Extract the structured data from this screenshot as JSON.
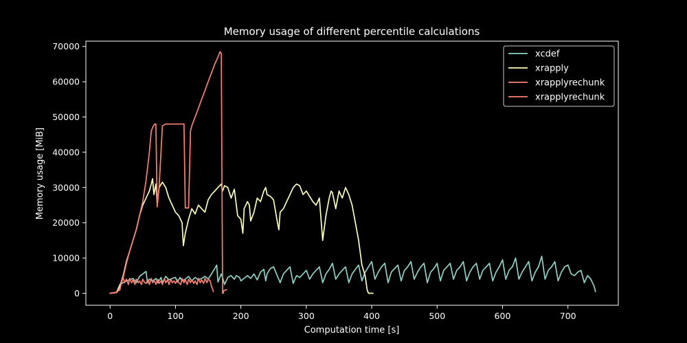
{
  "chart_data": {
    "type": "line",
    "title": "Memory usage of different percentile calculations",
    "xlabel": "Computation time [s]",
    "ylabel": "Memory usage [MiB]",
    "xlim": [
      -37,
      777
    ],
    "ylim": [
      -3400,
      71500
    ],
    "xticks": [
      0,
      100,
      200,
      300,
      400,
      500,
      600,
      700
    ],
    "yticks": [
      0,
      10000,
      20000,
      30000,
      40000,
      50000,
      60000,
      70000
    ],
    "legend_position": "top-right",
    "grid": false,
    "series": [
      {
        "name": "xcdef",
        "color": "#8dd3c7",
        "x": [
          0,
          10,
          15,
          25,
          35,
          40,
          45,
          50,
          55,
          57,
          60,
          65,
          70,
          73,
          78,
          80,
          85,
          90,
          95,
          100,
          103,
          107,
          110,
          115,
          120,
          125,
          130,
          135,
          140,
          145,
          150,
          155,
          160,
          163,
          165,
          170,
          172,
          175,
          180,
          185,
          190,
          193,
          198,
          200,
          210,
          215,
          220,
          225,
          230,
          235,
          238,
          240,
          245,
          250,
          260,
          265,
          270,
          275,
          280,
          285,
          290,
          295,
          300,
          305,
          310,
          315,
          320,
          325,
          330,
          335,
          340,
          345,
          350,
          355,
          360,
          365,
          370,
          375,
          380,
          385,
          390,
          395,
          400,
          405,
          410,
          415,
          420,
          425,
          430,
          435,
          440,
          445,
          450,
          455,
          460,
          465,
          470,
          475,
          480,
          485,
          490,
          495,
          500,
          505,
          510,
          515,
          520,
          525,
          530,
          535,
          540,
          545,
          550,
          555,
          560,
          565,
          570,
          575,
          580,
          585,
          590,
          595,
          600,
          605,
          610,
          615,
          620,
          625,
          630,
          635,
          640,
          645,
          650,
          655,
          660,
          665,
          670,
          675,
          680,
          685,
          690,
          695,
          700,
          705,
          710,
          715,
          720,
          725,
          730,
          735,
          740,
          742
        ],
        "y": [
          0,
          300,
          2500,
          3500,
          4200,
          3000,
          4800,
          5500,
          6200,
          3000,
          4000,
          3500,
          4200,
          3000,
          4500,
          3000,
          4800,
          3800,
          4200,
          4500,
          3200,
          4500,
          3500,
          4000,
          4800,
          3500,
          4500,
          3800,
          4200,
          4800,
          4000,
          5500,
          7000,
          8000,
          3200,
          5500,
          4500,
          2500,
          4500,
          5000,
          4000,
          5000,
          4500,
          3500,
          5000,
          4200,
          5500,
          3800,
          6000,
          6800,
          3500,
          5500,
          7000,
          7500,
          3000,
          5500,
          6500,
          7500,
          2800,
          5000,
          4500,
          5500,
          6500,
          4000,
          5500,
          6500,
          7500,
          3000,
          5500,
          6800,
          8500,
          4000,
          5500,
          6500,
          7500,
          3000,
          5500,
          6800,
          8000,
          3500,
          6000,
          7500,
          9000,
          4000,
          6000,
          7500,
          8500,
          3000,
          6000,
          7000,
          8000,
          3500,
          6500,
          7500,
          9000,
          4000,
          6000,
          7500,
          8500,
          3000,
          6000,
          7000,
          8500,
          3500,
          6500,
          7500,
          8500,
          4000,
          6500,
          7500,
          9000,
          3500,
          6000,
          7500,
          8500,
          4000,
          6500,
          7500,
          8500,
          3500,
          6000,
          7500,
          9500,
          4000,
          6500,
          7500,
          10000,
          4000,
          6000,
          7500,
          9000,
          3500,
          6000,
          7500,
          10500,
          4000,
          6500,
          7500,
          9000,
          3500,
          6000,
          7500,
          8000,
          5500,
          5000,
          6000,
          6500,
          3000,
          5000,
          4000,
          2000,
          500
        ]
      },
      {
        "name": "xrapply",
        "color": "#ffffb3",
        "x": [
          0,
          10,
          15,
          20,
          25,
          30,
          35,
          40,
          45,
          50,
          55,
          60,
          63,
          65,
          67,
          70,
          72,
          75,
          80,
          85,
          90,
          95,
          100,
          105,
          110,
          112,
          115,
          120,
          125,
          130,
          135,
          140,
          145,
          150,
          155,
          160,
          165,
          170,
          172,
          175,
          180,
          185,
          190,
          195,
          200,
          203,
          205,
          210,
          213,
          215,
          220,
          225,
          230,
          235,
          238,
          240,
          245,
          250,
          255,
          258,
          260,
          265,
          270,
          275,
          280,
          285,
          290,
          295,
          300,
          305,
          310,
          315,
          320,
          325,
          330,
          335,
          338,
          340,
          345,
          350,
          355,
          360,
          365,
          370,
          375,
          380,
          385,
          390,
          393,
          395,
          398,
          400,
          402
        ],
        "y": [
          0,
          200,
          2000,
          5000,
          9000,
          12000,
          15000,
          18000,
          22000,
          25000,
          27000,
          29000,
          31000,
          32500,
          28000,
          31000,
          25500,
          30000,
          31500,
          30000,
          27000,
          25000,
          23000,
          22000,
          20000,
          13500,
          17000,
          21000,
          24000,
          22500,
          25000,
          24000,
          23000,
          26500,
          28000,
          29000,
          30000,
          31000,
          29000,
          30500,
          30000,
          27000,
          29500,
          22000,
          21000,
          17000,
          24000,
          26000,
          25000,
          20500,
          23000,
          27000,
          26000,
          29000,
          30000,
          28000,
          27500,
          26500,
          21000,
          18000,
          23000,
          24000,
          26000,
          28000,
          30000,
          31000,
          30500,
          28000,
          29000,
          27500,
          26000,
          25000,
          27000,
          15000,
          22000,
          27000,
          29000,
          28500,
          24000,
          29000,
          27000,
          30000,
          28000,
          25000,
          20000,
          15000,
          8000,
          5000,
          1000,
          0,
          0,
          0,
          0
        ]
      },
      {
        "name": "xrapplyrechunk",
        "color": "#fb8072",
        "x": [
          0,
          10,
          15,
          20,
          25,
          30,
          35,
          40,
          45,
          50,
          55,
          60,
          63,
          65,
          68,
          70,
          72,
          75,
          80,
          85,
          90,
          95,
          100,
          105,
          110,
          113,
          115,
          117,
          120,
          123,
          125,
          130,
          135,
          140,
          145,
          150,
          155,
          160,
          165,
          168,
          170,
          172,
          173,
          174,
          178
        ],
        "y": [
          0,
          200,
          1500,
          4500,
          8500,
          12000,
          15000,
          18000,
          22000,
          26000,
          32000,
          40000,
          46000,
          47000,
          48000,
          48000,
          24500,
          30000,
          47500,
          48000,
          48000,
          48000,
          48000,
          48000,
          48000,
          48000,
          24200,
          24200,
          24200,
          46000,
          47500,
          50000,
          52500,
          55000,
          57500,
          60000,
          62500,
          65000,
          67000,
          68500,
          68000,
          0,
          0,
          800,
          1000
        ]
      },
      {
        "name": "xrapplyrechunk",
        "color": "#fb8072",
        "x": [
          0,
          10,
          15,
          18,
          20,
          22,
          25,
          28,
          30,
          33,
          35,
          38,
          40,
          43,
          45,
          48,
          50,
          53,
          55,
          58,
          60,
          63,
          65,
          68,
          70,
          73,
          75,
          78,
          80,
          83,
          85,
          88,
          90,
          93,
          95,
          98,
          100,
          103,
          105,
          108,
          110,
          113,
          115,
          118,
          120,
          123,
          125,
          128,
          130,
          133,
          135,
          138,
          140,
          143,
          145,
          148,
          150,
          153,
          155,
          158
        ],
        "y": [
          0,
          300,
          1000,
          3500,
          4500,
          3000,
          4000,
          2500,
          4200,
          3000,
          3800,
          2500,
          4000,
          3000,
          3500,
          2500,
          4000,
          3000,
          2800,
          3800,
          2500,
          4200,
          3000,
          3500,
          2500,
          4000,
          2800,
          3500,
          2500,
          4200,
          3000,
          3800,
          2500,
          4000,
          3000,
          3500,
          2800,
          3800,
          3000,
          2500,
          4200,
          3000,
          3800,
          2500,
          4000,
          3000,
          3800,
          2800,
          3500,
          2500,
          4200,
          3000,
          3800,
          2800,
          4200,
          3000,
          4000,
          3500,
          2000,
          500
        ]
      }
    ]
  }
}
